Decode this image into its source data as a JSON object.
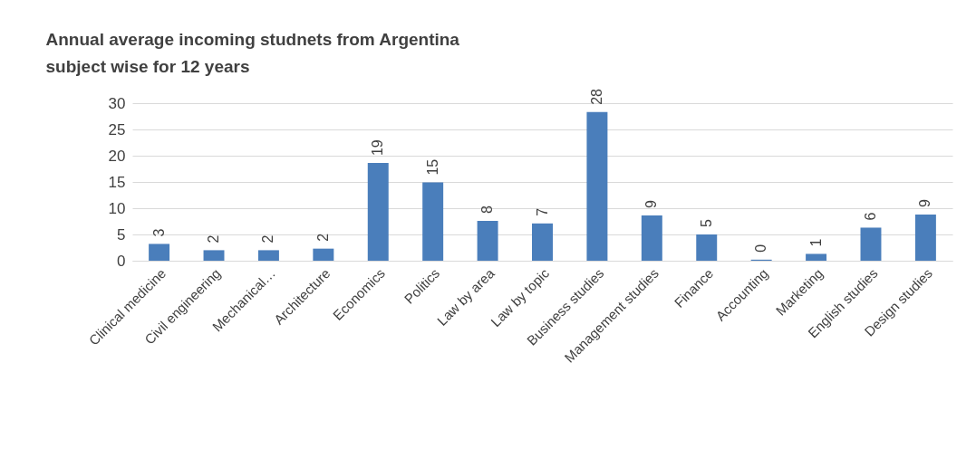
{
  "chart_data": {
    "type": "bar",
    "title": [
      "Annual average incoming studnets from Argentina",
      "subject wise for 12 years"
    ],
    "categories": [
      "Clinical medicine",
      "Civil engineering",
      "Mechanical…",
      "Architecture",
      "Economics",
      "Politics",
      "Law by area",
      "Law by topic",
      "Business studies",
      "Management studies",
      "Finance",
      "Accounting",
      "Marketing",
      "English studies",
      "Design studies"
    ],
    "values": [
      3.2,
      2.0,
      2.0,
      2.3,
      18.6,
      14.9,
      7.6,
      7.1,
      28.3,
      8.6,
      5.0,
      0.2,
      1.3,
      6.3,
      8.8
    ],
    "value_labels": [
      "3",
      "2",
      "2",
      "2",
      "19",
      "15",
      "8",
      "7",
      "28",
      "9",
      "5",
      "0",
      "1",
      "6",
      "9"
    ],
    "color": "#4a7ebb",
    "ylim": [
      0,
      30
    ],
    "yticks": [
      0,
      5,
      10,
      15,
      20,
      25,
      30
    ],
    "grid": "y"
  }
}
